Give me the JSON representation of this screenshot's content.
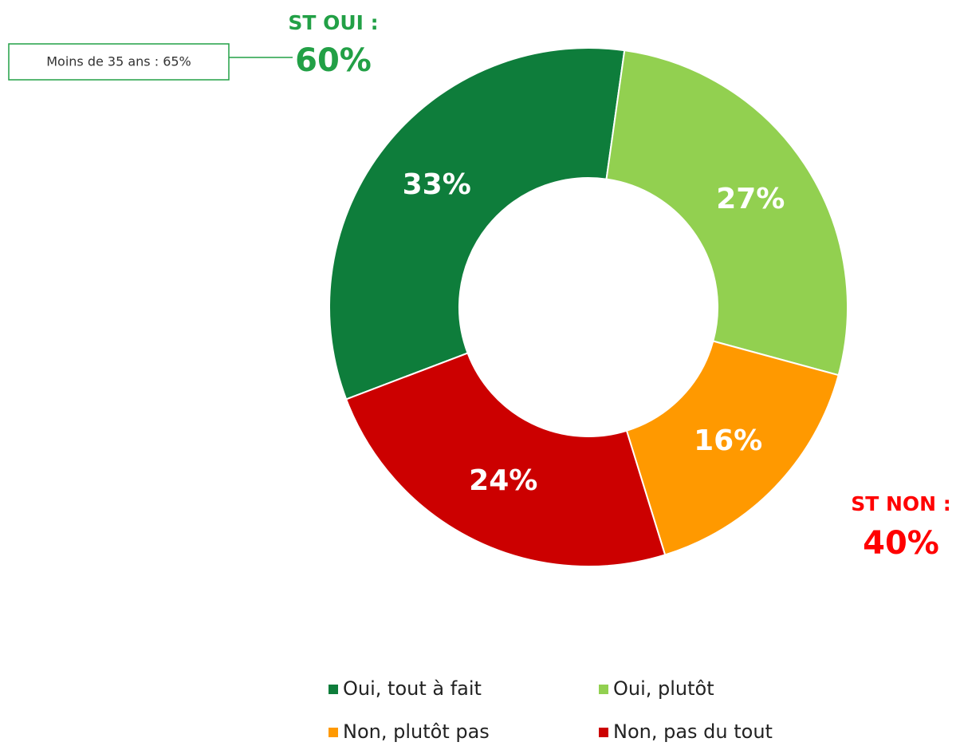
{
  "chart_data": {
    "type": "donut",
    "categories": [
      "Oui, tout à fait",
      "Oui, plutôt",
      "Non, plutôt pas",
      "Non, pas du tout"
    ],
    "values": [
      33,
      27,
      16,
      24
    ],
    "value_labels": [
      "33%",
      "27%",
      "16%",
      "24%"
    ],
    "colors": [
      "#0e7d3b",
      "#92d050",
      "#ff9900",
      "#cc0000"
    ],
    "annotations": {
      "subtotal_yes_label": "ST OUI :",
      "subtotal_yes_value": "60%",
      "subtotal_no_label": "ST NON :",
      "subtotal_no_value": "40%",
      "note": "Moins de 35 ans  : 65%"
    },
    "legend": true
  }
}
